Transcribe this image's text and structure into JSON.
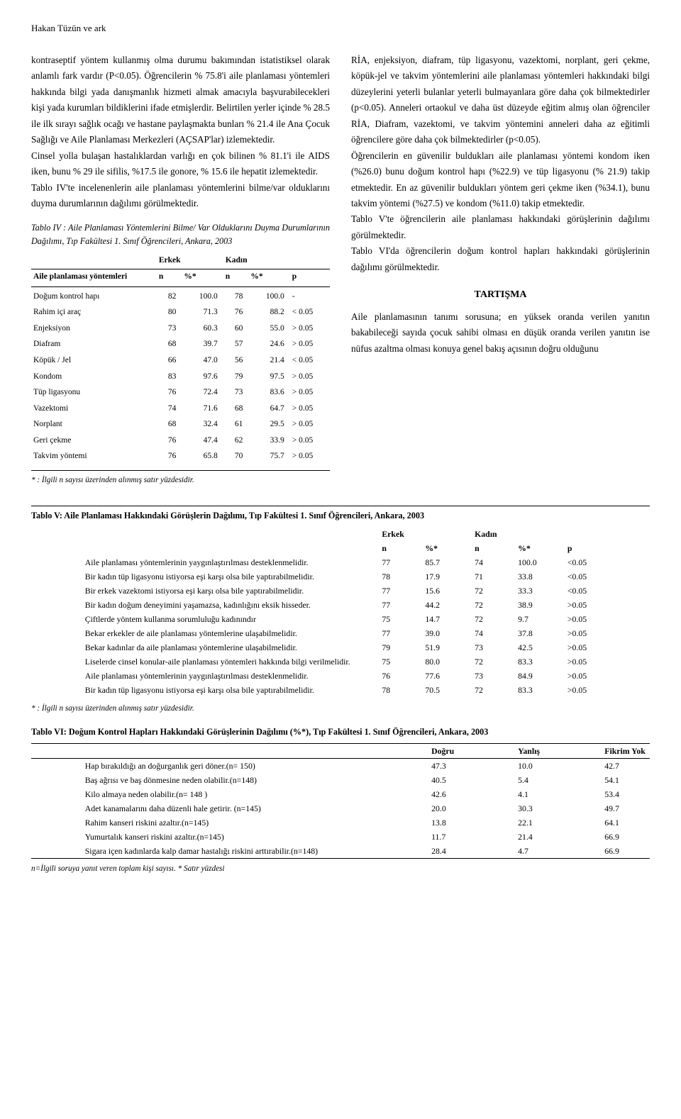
{
  "running_head": "Hakan Tüzün ve ark",
  "left_col": {
    "p1": "kontraseptif yöntem kullanmış olma durumu bakımından istatistiksel olarak anlamlı fark vardır (P<0.05). Öğrencilerin % 75.8'i aile planlaması yöntemleri hakkında bilgi yada danışmanlık hizmeti almak amacıyla başvurabilecekleri kişi yada kurumları bildiklerini ifade etmişlerdir. Belirtilen yerler içinde % 28.5 ile ilk sırayı sağlık ocağı ve hastane paylaşmakta bunları % 21.4 ile Ana Çocuk Sağlığı ve Aile Planlaması Merkezleri (AÇSAP'lar) izlemektedir.",
    "p2": "Cinsel yolla bulaşan hastalıklardan varlığı en çok bilinen % 81.1'i ile AIDS iken, bunu % 29 ile sifilis, %17.5 ile gonore, % 15.6 ile hepatit izlemektedir.",
    "p3": "Tablo IV'te incelenenlerin aile planlaması yöntemlerini bilme/var olduklarını duyma durumlarının dağılımı görülmektedir."
  },
  "right_col": {
    "p1": "RİA, enjeksiyon, diafram, tüp ligasyonu, vazektomi, norplant, geri çekme, köpük-jel ve takvim yöntemlerini aile planlaması yöntemleri hakkındaki bilgi düzeylerini yeterli bulanlar yeterli bulmayanlara göre daha çok bilmektedirler (p<0.05). Anneleri ortaokul ve daha üst düzeyde eğitim almış olan öğrenciler RİA, Diafram, vazektomi, ve takvim yöntemini anneleri daha az eğitimli öğrencilere göre daha çok bilmektedirler (p<0.05).",
    "p2": "Öğrencilerin en güvenilir buldukları aile planlaması yöntemi kondom iken (%26.0) bunu doğum kontrol hapı (%22.9) ve tüp ligasyonu (% 21.9) takip etmektedir. En az güvenilir buldukları yöntem geri çekme iken (%34.1), bunu takvim yöntemi (%27.5) ve kondom (%11.0) takip etmektedir.",
    "p3": "Tablo V'te öğrencilerin aile planlaması hakkındaki görüşlerinin dağılımı görülmektedir.",
    "p4": "Tablo VI'da öğrencilerin doğum kontrol hapları hakkındaki görüşlerinin dağılımı görülmektedir.",
    "section_head": "TARTIŞMA",
    "p5": "Aile planlamasının tanımı sorusuna; en yüksek oranda verilen yanıtın bakabileceği sayıda çocuk sahibi olması en düşük oranda verilen yanıtın ise nüfus azaltma olması konuya genel bakış açısının doğru olduğunu"
  },
  "table4": {
    "title": "Tablo IV : Aile Planlaması Yöntemlerini Bilme/ Var Olduklarını Duyma Durumlarının Dağılımı, Tıp Fakültesi 1. Sınıf Öğrencileri, Ankara, 2003",
    "groups": [
      "Erkek",
      "Kadın"
    ],
    "cols": [
      "Aile planlaması yöntemleri",
      "n",
      "%*",
      "n",
      "%*",
      "p"
    ],
    "rows": [
      [
        "Doğum kontrol hapı",
        "82",
        "100.0",
        "78",
        "100.0",
        "-"
      ],
      [
        "Rahim içi araç",
        "80",
        "71.3",
        "76",
        "88.2",
        "< 0.05"
      ],
      [
        "Enjeksiyon",
        "73",
        "60.3",
        "60",
        "55.0",
        "> 0.05"
      ],
      [
        "Diafram",
        "68",
        "39.7",
        "57",
        "24.6",
        "> 0.05"
      ],
      [
        "Köpük / Jel",
        "66",
        "47.0",
        "56",
        "21.4",
        "< 0.05"
      ],
      [
        "Kondom",
        "83",
        "97.6",
        "79",
        "97.5",
        "> 0.05"
      ],
      [
        "Tüp ligasyonu",
        "76",
        "72.4",
        "73",
        "83.6",
        "> 0.05"
      ],
      [
        "Vazektomi",
        "74",
        "71.6",
        "68",
        "64.7",
        "> 0.05"
      ],
      [
        "Norplant",
        "68",
        "32.4",
        "61",
        "29.5",
        "> 0.05"
      ],
      [
        "Geri çekme",
        "76",
        "47.4",
        "62",
        "33.9",
        "> 0.05"
      ],
      [
        "Takvim yöntemi",
        "76",
        "65.8",
        "70",
        "75.7",
        "> 0.05"
      ]
    ],
    "footnote": "* : İlgili n sayısı üzerinden alınmış satır yüzdesidir."
  },
  "table5": {
    "title": "Tablo V: Aile Planlaması Hakkındaki Görüşlerin Dağılımı, Tıp Fakültesi 1. Sınıf Öğrencileri, Ankara, 2003",
    "groups": [
      "Erkek",
      "Kadın"
    ],
    "cols": [
      "",
      "n",
      "%*",
      "n",
      "%*",
      "p"
    ],
    "rows": [
      [
        "Aile planlaması yöntemlerinin yaygınlaştırılması desteklenmelidir.",
        "77",
        "85.7",
        "74",
        "100.0",
        "<0.05"
      ],
      [
        "Bir kadın tüp ligasyonu istiyorsa eşi karşı olsa bile yaptırabilmelidir.",
        "78",
        "17.9",
        "71",
        "33.8",
        "<0.05"
      ],
      [
        "Bir erkek vazektomi istiyorsa eşi karşı olsa bile yaptırabilmelidir.",
        "77",
        "15.6",
        "72",
        "33.3",
        "<0.05"
      ],
      [
        "Bir kadın doğum deneyimini yaşamazsa, kadınlığını eksik hisseder.",
        "77",
        "44.2",
        "72",
        "38.9",
        ">0.05"
      ],
      [
        "Çiftlerde yöntem kullanma sorumluluğu kadınındır",
        "75",
        "14.7",
        "72",
        "9.7",
        ">0.05"
      ],
      [
        "Bekar erkekler de aile planlaması yöntemlerine ulaşabilmelidir.",
        "77",
        "39.0",
        "74",
        "37.8",
        ">0.05"
      ],
      [
        "Bekar kadınlar da aile planlaması yöntemlerine ulaşabilmelidir.",
        "79",
        "51.9",
        "73",
        "42.5",
        ">0.05"
      ],
      [
        "Liselerde cinsel konular-aile planlaması yöntemleri hakkında bilgi verilmelidir.",
        "75",
        "80.0",
        "72",
        "83.3",
        ">0.05"
      ],
      [
        "Aile planlaması yöntemlerinin yaygınlaştırılması desteklenmelidir.",
        "76",
        "77.6",
        "73",
        "84.9",
        ">0.05"
      ],
      [
        "Bir kadın tüp ligasyonu istiyorsa eşi karşı olsa bile yaptırabilmelidir.",
        "78",
        "70.5",
        "72",
        "83.3",
        ">0.05"
      ]
    ],
    "footnote": "* : İlgili n sayısı üzerinden alınmış satır yüzdesidir."
  },
  "table6": {
    "title": "Tablo VI: Doğum Kontrol Hapları Hakkındaki Görüşlerinin Dağılımı (%*), Tıp Fakültesi 1. Sınıf Öğrencileri, Ankara, 2003",
    "cols": [
      "",
      "Doğru",
      "Yanlış",
      "Fikrim Yok"
    ],
    "rows": [
      [
        "Hap bırakıldığı an doğurganlık geri döner.(n= 150)",
        "47.3",
        "10.0",
        "42.7"
      ],
      [
        "Baş ağrısı ve baş dönmesine neden olabilir.(n=148)",
        "40.5",
        "5.4",
        "54.1"
      ],
      [
        "Kilo almaya neden olabilir.(n= 148 )",
        "42.6",
        "4.1",
        "53.4"
      ],
      [
        "Adet kanamalarını daha düzenli hale getirir. (n=145)",
        "20.0",
        "30.3",
        "49.7"
      ],
      [
        "Rahim kanseri riskini azaltır.(n=145)",
        "13.8",
        "22.1",
        "64.1"
      ],
      [
        "Yumurtalık kanseri riskini azaltır.(n=145)",
        "11.7",
        "21.4",
        "66.9"
      ],
      [
        "Sigara içen kadınlarda kalp damar hastalığı riskini arttırabilir.(n=148)",
        "28.4",
        "4.7",
        "66.9"
      ]
    ],
    "footnote": "n=İlgili soruya yanıt veren toplam kişi sayısı.  * Satır yüzdesi"
  }
}
